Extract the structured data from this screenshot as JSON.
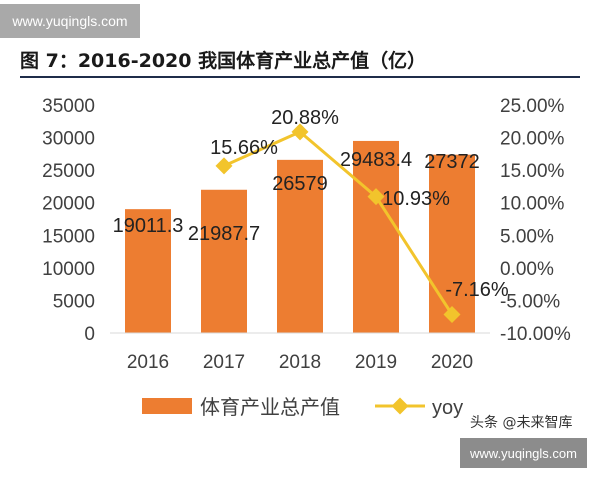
{
  "watermark_top": "www.yuqingls.com",
  "watermark_bottom": "www.yuqingls.com",
  "credit_text": "头条 @未来智库",
  "title": "图 7：2016-2020 我国体育产业总产值（亿）",
  "colors": {
    "bar": "#ED7D31",
    "line": "#F2C42C",
    "text": "#404040"
  },
  "chart_data": {
    "type": "bar",
    "categories": [
      "2016",
      "2017",
      "2018",
      "2019",
      "2020"
    ],
    "series": [
      {
        "name": "体育产业总产值",
        "type": "bar",
        "axis": "left",
        "values": [
          19011.3,
          21987.7,
          26579,
          29483.4,
          27372
        ],
        "labels": [
          "19011.3",
          "21987.7",
          "26579",
          "29483.4",
          "27372"
        ]
      },
      {
        "name": "yoy",
        "type": "line",
        "axis": "right",
        "values": [
          null,
          15.66,
          20.88,
          10.93,
          -7.16
        ],
        "labels": [
          "",
          "15.66%",
          "20.88%",
          "10.93%",
          "-7.16%"
        ]
      }
    ],
    "left_axis": {
      "ylim": [
        0,
        35000
      ],
      "ticks": [
        "0",
        "5000",
        "10000",
        "15000",
        "20000",
        "25000",
        "30000",
        "35000"
      ]
    },
    "right_axis": {
      "ylim": [
        -10,
        25
      ],
      "ticks": [
        "-10.00%",
        "-5.00%",
        "0.00%",
        "5.00%",
        "10.00%",
        "15.00%",
        "20.00%",
        "25.00%"
      ]
    },
    "grid": false,
    "legend_position": "bottom"
  }
}
